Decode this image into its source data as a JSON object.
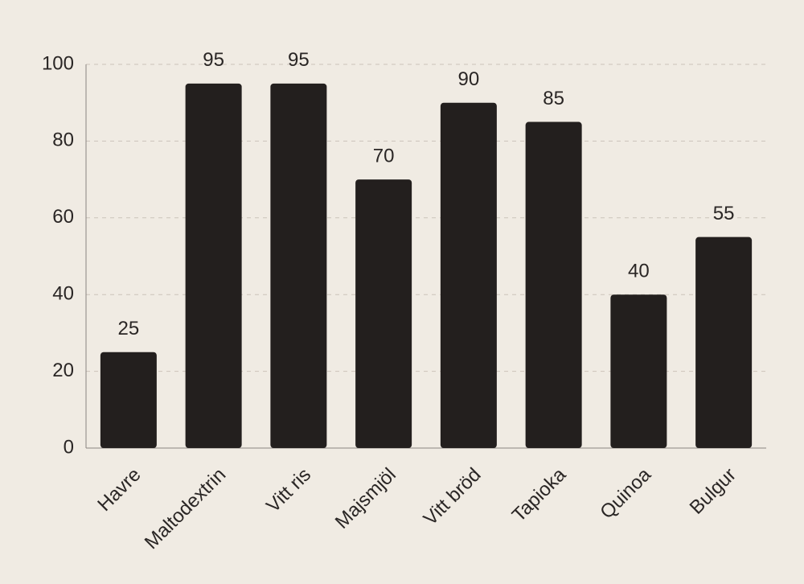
{
  "chart_data": {
    "type": "bar",
    "categories": [
      "Havre",
      "Maltodextrin",
      "Vitt ris",
      "Majsmjöl",
      "Vitt bröd",
      "Tapioka",
      "Quinoa",
      "Bulgur"
    ],
    "values": [
      25,
      95,
      95,
      70,
      90,
      85,
      40,
      55
    ],
    "color": "#231f1e",
    "ylim": [
      0,
      100
    ],
    "yticks": [
      0,
      20,
      40,
      60,
      80,
      100
    ],
    "grid": true
  }
}
